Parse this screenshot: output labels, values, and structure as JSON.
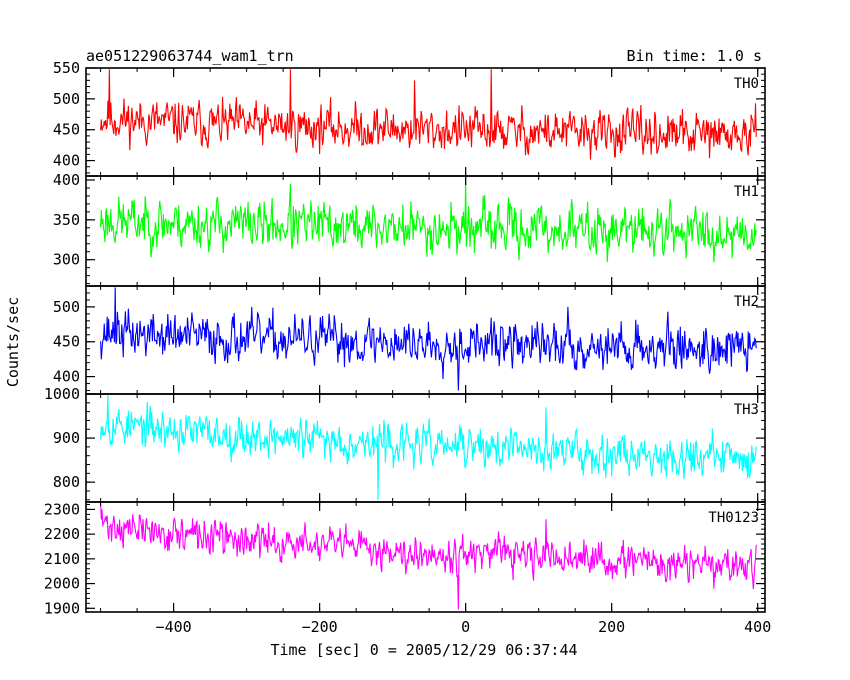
{
  "chart_data": {
    "type": "line",
    "title": "ae051229063744_wam1_trn",
    "bin_time_label": "Bin time: 1.0 s",
    "xlabel": "Time [sec] 0 = 2005/12/29 06:37:44",
    "ylabel": "Counts/sec",
    "xlim": [
      -520,
      410
    ],
    "x_ticks": [
      -400,
      -200,
      0,
      200,
      400
    ],
    "x_tick_labels": [
      "−400",
      "−200",
      "0",
      "200",
      "400"
    ],
    "panels": [
      {
        "name": "TH0",
        "color": "#ff0000",
        "ylim": [
          375,
          550
        ],
        "y_ticks": [
          400,
          450,
          500,
          550
        ],
        "trend_start": 470,
        "trend_end": 440,
        "noise": 30,
        "seed": 11,
        "spikes": [
          [
            -488,
            548
          ],
          [
            -240,
            548
          ],
          [
            35,
            548
          ],
          [
            -70,
            530
          ]
        ]
      },
      {
        "name": "TH1",
        "color": "#00ff00",
        "ylim": [
          267,
          405
        ],
        "y_ticks": [
          300,
          350,
          400
        ],
        "trend_start": 350,
        "trend_end": 335,
        "noise": 26,
        "seed": 23,
        "spikes": [
          [
            0,
            404
          ],
          [
            -240,
            395
          ]
        ]
      },
      {
        "name": "TH2",
        "color": "#0000ff",
        "ylim": [
          375,
          530
        ],
        "y_ticks": [
          400,
          450,
          500
        ],
        "trend_start": 465,
        "trend_end": 440,
        "noise": 28,
        "seed": 37,
        "spikes": [
          [
            -480,
            528
          ],
          [
            -10,
            380
          ],
          [
            140,
            500
          ]
        ]
      },
      {
        "name": "TH3",
        "color": "#00ffff",
        "ylim": [
          755,
          1000
        ],
        "y_ticks": [
          800,
          900,
          1000
        ],
        "trend_start": 940,
        "trend_end": 855,
        "noise": 38,
        "seed": 53,
        "spikes": [
          [
            -490,
            1000
          ],
          [
            110,
            970
          ],
          [
            -120,
            760
          ]
        ]
      },
      {
        "name": "TH0123",
        "color": "#ff00ff",
        "ylim": [
          1885,
          2330
        ],
        "y_ticks": [
          1900,
          2000,
          2100,
          2200,
          2300
        ],
        "trend_start": 2250,
        "trend_end": 2065,
        "noise": 60,
        "seed": 71,
        "spikes": [
          [
            -500,
            2325
          ],
          [
            -10,
            1895
          ],
          [
            110,
            2260
          ]
        ]
      }
    ]
  }
}
